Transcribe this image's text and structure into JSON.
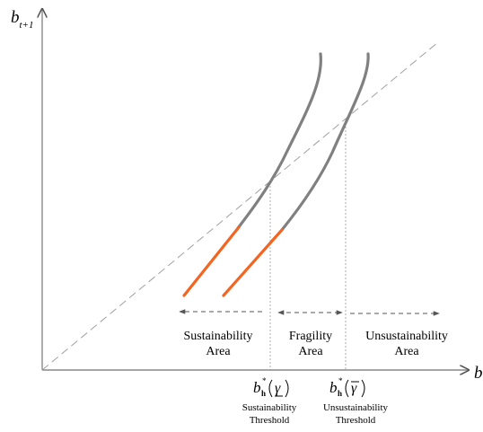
{
  "axes": {
    "y_label_main": "b",
    "y_label_sub": "t+1",
    "x_label": "b"
  },
  "regions": [
    {
      "line1": "Sustainability",
      "line2": "Area"
    },
    {
      "line1": "Fragility",
      "line2": "Area"
    },
    {
      "line1": "Unsustainability",
      "line2": "Area"
    }
  ],
  "thresholds": [
    {
      "symbol": "b",
      "superscript": "*",
      "subscript": "h",
      "argument": "γ",
      "bar": "under",
      "label_line1": "Sustainability",
      "label_line2": "Threshold"
    },
    {
      "symbol": "b",
      "superscript": "*",
      "subscript": "h",
      "argument": "γ",
      "bar": "over",
      "label_line1": "Unsustainability",
      "label_line2": "Threshold"
    }
  ],
  "colors": {
    "axis": "#888888",
    "curve": "#808080",
    "curve_highlight": "#f26522",
    "dashed_line": "#a0a0a0",
    "text": "#000000"
  }
}
